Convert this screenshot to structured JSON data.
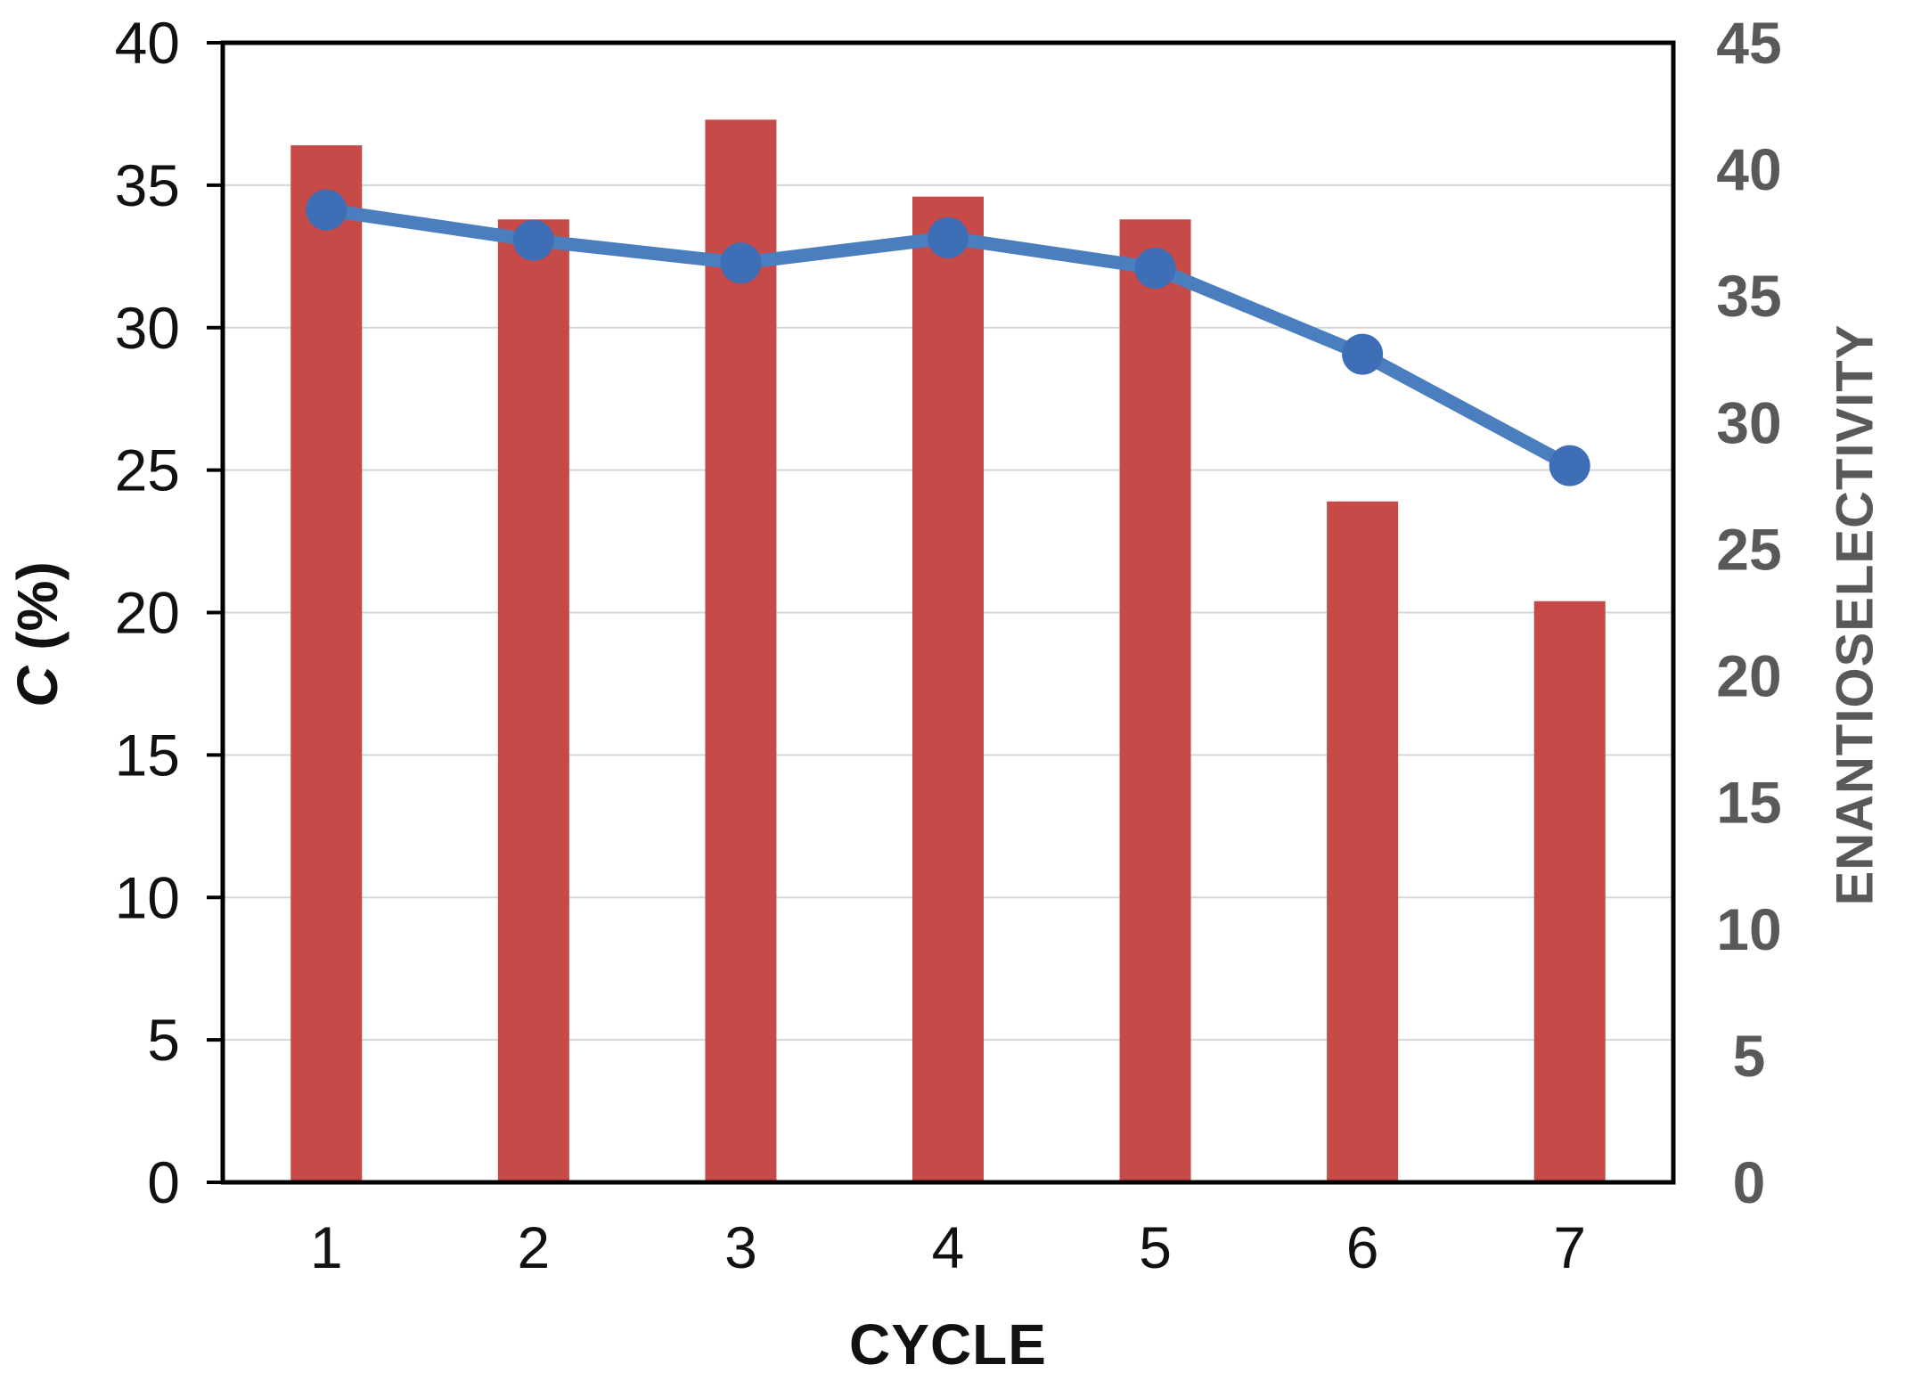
{
  "chart_data": {
    "type": "combo",
    "title": "",
    "xlabel": "CYCLE",
    "ylabel_left_italic": "C",
    "ylabel_left_rest": " (%)",
    "ylabel_right": "ENANTIOSELECTIVITY",
    "categories": [
      "1",
      "2",
      "3",
      "4",
      "5",
      "6",
      "7"
    ],
    "series": [
      {
        "name": "C (%)",
        "type": "bar",
        "axis": "left",
        "color": "#C64A47",
        "values": [
          36.4,
          33.8,
          37.3,
          34.6,
          33.8,
          23.9,
          20.4
        ]
      },
      {
        "name": "ENANTIOSELECTIVITY",
        "type": "line",
        "axis": "right",
        "color": "#4A7EBE",
        "marker_color": "#3D6EB6",
        "values": [
          38.4,
          37.2,
          36.3,
          37.3,
          36.1,
          32.7,
          28.3
        ]
      }
    ],
    "left_axis": {
      "min": 0,
      "max": 40,
      "step": 5,
      "ticks": [
        0,
        5,
        10,
        15,
        20,
        25,
        30,
        35,
        40
      ],
      "label_color": "#111111"
    },
    "right_axis": {
      "min": 0,
      "max": 45,
      "step": 5,
      "ticks": [
        0,
        5,
        10,
        15,
        20,
        25,
        30,
        35,
        40,
        45
      ],
      "label_color": "#595959"
    },
    "grid": {
      "show": true,
      "color": "#D6D6D6"
    },
    "frame_color": "#000000",
    "background": "#FFFFFF",
    "legend": null
  }
}
